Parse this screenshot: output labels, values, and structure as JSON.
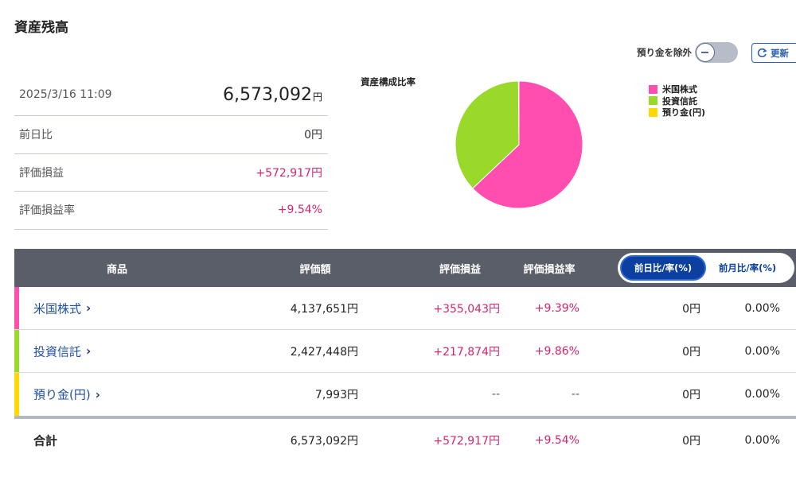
{
  "page": {
    "title": "資産残高"
  },
  "controls": {
    "exclude_deposit_label": "預り金を除外",
    "exclude_deposit_on": false,
    "refresh_label": "更新"
  },
  "summary": {
    "datetime": "2025/3/16 11:09",
    "total": "6,573,092",
    "total_unit": "円",
    "rows": [
      {
        "label": "前日比",
        "value": "0円"
      },
      {
        "label": "評価損益",
        "value": "+572,917円"
      },
      {
        "label": "評価損益率",
        "value": "+9.54%"
      }
    ]
  },
  "composition": {
    "title": "資産構成比率",
    "legend": [
      {
        "label": "米国株式",
        "color": "#ff4db0"
      },
      {
        "label": "投資信託",
        "color": "#9ad82a"
      },
      {
        "label": "預り金(円)",
        "color": "#ffd800"
      }
    ],
    "chart_data": {
      "type": "pie",
      "labels": [
        "米国株式",
        "投資信託",
        "預り金(円)"
      ],
      "values": [
        4137651,
        2427448,
        7993
      ],
      "colors": [
        "#ff4db0",
        "#9ad82a",
        "#ffd800"
      ]
    }
  },
  "table": {
    "headers": {
      "product": "商品",
      "amount": "評価額",
      "pl": "評価損益",
      "pl_rate": "評価損益率"
    },
    "toggle": {
      "active": "前日比/率(%)",
      "inactive": "前月比/率(%)"
    },
    "rows": [
      {
        "name": "米国株式",
        "color": "#ff4db0",
        "amount": "4,137,651円",
        "pl": "+355,043円",
        "pl_rate": "+9.39%",
        "day": "0円",
        "day_rate": "0.00%"
      },
      {
        "name": "投資信託",
        "color": "#9ad82a",
        "amount": "2,427,448円",
        "pl": "+217,874円",
        "pl_rate": "+9.86%",
        "day": "0円",
        "day_rate": "0.00%"
      },
      {
        "name": "預り金(円)",
        "color": "#ffd800",
        "amount": "7,993円",
        "pl": "--",
        "pl_rate": "--",
        "day": "0円",
        "day_rate": "0.00%"
      }
    ],
    "total": {
      "label": "合計",
      "amount": "6,573,092円",
      "pl": "+572,917円",
      "pl_rate": "+9.54%",
      "day": "0円",
      "day_rate": "0.00%"
    }
  }
}
